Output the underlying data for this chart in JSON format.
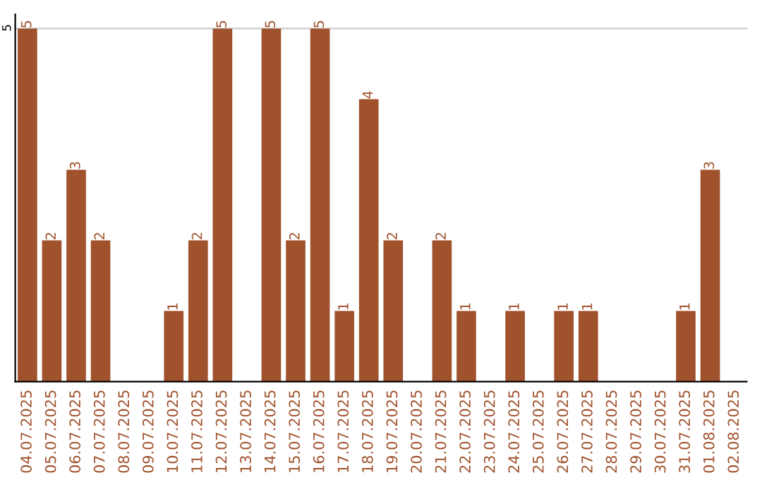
{
  "chart_data": {
    "type": "bar",
    "categories": [
      "04.07.2025",
      "05.07.2025",
      "06.07.2025",
      "07.07.2025",
      "08.07.2025",
      "09.07.2025",
      "10.07.2025",
      "11.07.2025",
      "12.07.2025",
      "13.07.2025",
      "14.07.2025",
      "15.07.2025",
      "16.07.2025",
      "17.07.2025",
      "18.07.2025",
      "19.07.2025",
      "20.07.2025",
      "21.07.2025",
      "22.07.2025",
      "23.07.2025",
      "24.07.2025",
      "25.07.2025",
      "26.07.2025",
      "27.07.2025",
      "28.07.2025",
      "29.07.2025",
      "30.07.2025",
      "31.07.2025",
      "01.08.2025",
      "02.08.2025"
    ],
    "values": [
      5,
      2,
      3,
      2,
      0,
      0,
      1,
      2,
      5,
      0,
      5,
      2,
      5,
      1,
      4,
      2,
      0,
      2,
      1,
      0,
      1,
      0,
      1,
      1,
      0,
      0,
      0,
      1,
      3,
      0
    ],
    "value_labels": [
      "5",
      "2",
      "3",
      "2",
      null,
      null,
      "1",
      "2",
      "5",
      null,
      "5",
      "2",
      "5",
      "1",
      "4",
      "2",
      null,
      "2",
      "1",
      null,
      "1",
      null,
      "1",
      "1",
      null,
      null,
      null,
      "1",
      "3",
      null
    ],
    "color": "#a0522d",
    "ylim": [
      0,
      5.2
    ],
    "yticks": [
      5
    ],
    "grid": "y"
  }
}
